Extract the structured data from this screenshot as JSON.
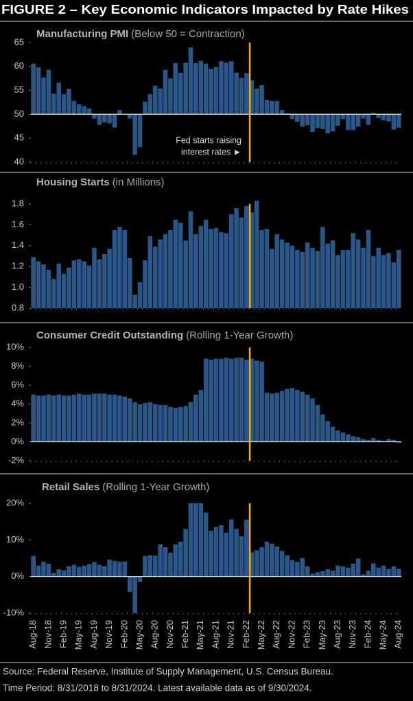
{
  "title": "FIGURE 2 – Key Economic Indicators Impacted by Rate Hikes",
  "chart_data": [
    {
      "type": "bar",
      "title": "Manufacturing PMI",
      "subtitle": "(Below 50 = Contraction)",
      "color": "#2b5687",
      "baseline": 50,
      "annotation": [
        "Fed starts raising",
        "interest rates ►"
      ],
      "ylim": [
        40,
        65
      ],
      "yticks": [
        40,
        45,
        50,
        55,
        60,
        65
      ],
      "values": [
        60.6,
        59.8,
        57.7,
        59.3,
        54.3,
        56.6,
        54.2,
        55.3,
        52.8,
        52.1,
        51.7,
        51.2,
        49.1,
        47.8,
        48.3,
        48.1,
        47.2,
        50.9,
        50.1,
        49.1,
        41.5,
        43.1,
        52.6,
        54.2,
        56.0,
        55.4,
        59.3,
        57.5,
        60.7,
        58.7,
        60.8,
        64.0,
        60.7,
        61.2,
        60.6,
        59.5,
        59.9,
        61.1,
        60.8,
        61.1,
        58.7,
        57.6,
        58.6,
        57.1,
        55.4,
        56.1,
        53.0,
        52.8,
        52.8,
        50.9,
        50.2,
        49.0,
        48.4,
        47.4,
        47.7,
        46.3,
        47.1,
        46.9,
        46.0,
        46.4,
        47.6,
        49.0,
        46.7,
        46.7,
        47.4,
        49.1,
        47.8,
        50.3,
        49.2,
        48.7,
        48.5,
        46.8,
        47.2
      ]
    },
    {
      "type": "bar",
      "title": "Housing Starts",
      "subtitle": "(in Millions)",
      "color": "#2b5687",
      "ylim": [
        0.8,
        1.8
      ],
      "yticks": [
        0.8,
        {
          "value": 1,
          "label": "1.0"
        },
        1.2,
        1.4,
        1.6,
        1.8
      ],
      "values": [
        1.29,
        1.25,
        1.22,
        1.17,
        1.08,
        1.23,
        1.13,
        1.19,
        1.26,
        1.27,
        1.25,
        1.21,
        1.38,
        1.27,
        1.32,
        1.37,
        1.55,
        1.58,
        1.55,
        1.28,
        0.93,
        1.05,
        1.26,
        1.49,
        1.39,
        1.46,
        1.51,
        1.55,
        1.65,
        1.62,
        1.45,
        1.73,
        1.51,
        1.59,
        1.65,
        1.56,
        1.57,
        1.53,
        1.52,
        1.7,
        1.76,
        1.67,
        1.78,
        1.72,
        1.83,
        1.55,
        1.56,
        1.37,
        1.51,
        1.46,
        1.43,
        1.4,
        1.36,
        1.34,
        1.43,
        1.38,
        1.35,
        1.58,
        1.42,
        1.45,
        1.31,
        1.36,
        1.36,
        1.52,
        1.46,
        1.38,
        1.55,
        1.3,
        1.38,
        1.31,
        1.33,
        1.24,
        1.36
      ]
    },
    {
      "type": "bar",
      "title": "Consumer Credit Outstanding",
      "subtitle": "(Rolling 1-Year Growth)",
      "color": "#2b5687",
      "baseline": 0,
      "ylim": [
        -2,
        10
      ],
      "yticks": [
        {
          "value": -2,
          "label": "-2%"
        },
        {
          "value": 0,
          "label": "0%"
        },
        {
          "value": 2,
          "label": "2%"
        },
        {
          "value": 4,
          "label": "4%"
        },
        {
          "value": 6,
          "label": "6%"
        },
        {
          "value": 8,
          "label": "8%"
        },
        {
          "value": 10,
          "label": "10%"
        }
      ],
      "values": [
        5.0,
        4.9,
        4.9,
        5.0,
        4.9,
        5.0,
        4.9,
        4.9,
        5.0,
        5.1,
        5.0,
        5.0,
        5.1,
        5.1,
        5.1,
        5.0,
        5.0,
        4.9,
        4.8,
        4.6,
        4.2,
        4.0,
        4.1,
        4.2,
        4.0,
        3.9,
        3.9,
        3.7,
        3.6,
        3.7,
        3.8,
        4.2,
        5.0,
        5.5,
        8.8,
        8.7,
        8.8,
        8.8,
        8.9,
        8.8,
        8.9,
        8.9,
        8.7,
        8.8,
        8.6,
        8.5,
        5.2,
        5.1,
        5.2,
        5.4,
        5.6,
        5.7,
        5.5,
        5.3,
        5.0,
        4.6,
        3.9,
        2.9,
        2.2,
        1.6,
        1.2,
        1.0,
        0.8,
        0.6,
        0.5,
        0.3,
        0.2,
        0.4,
        0.2,
        0.1,
        0.3,
        0.2,
        -0.1
      ]
    },
    {
      "type": "bar",
      "title": "Retail Sales",
      "subtitle": "(Rolling 1-Year Growth)",
      "color": "#2b5687",
      "baseline": 0,
      "ylim": [
        -10,
        20
      ],
      "yticks": [
        {
          "value": -10,
          "label": "-10%"
        },
        {
          "value": 0,
          "label": "0%"
        },
        {
          "value": 10,
          "label": "10%"
        },
        {
          "value": 20,
          "label": "20%"
        }
      ],
      "categories": [
        "Aug-18",
        null,
        null,
        "Nov-18",
        null,
        null,
        "Feb-19",
        null,
        null,
        "May-19",
        null,
        null,
        "Aug-19",
        null,
        null,
        "Nov-19",
        null,
        null,
        "Feb-20",
        null,
        null,
        "May-20",
        null,
        null,
        "Aug-20",
        null,
        null,
        "Nov-20",
        null,
        null,
        "Feb-21",
        null,
        null,
        "May-21",
        null,
        null,
        "Aug-21",
        null,
        null,
        "Nov-21",
        null,
        null,
        "Feb-22",
        null,
        null,
        "May-22",
        null,
        null,
        "Aug-22",
        null,
        null,
        "Nov-22",
        null,
        null,
        "Feb-23",
        null,
        null,
        "May-23",
        null,
        null,
        "Aug-23",
        null,
        null,
        "Nov-23",
        null,
        null,
        "Feb-24",
        null,
        null,
        "May-24",
        null,
        null,
        "Aug-24"
      ],
      "values": [
        5.6,
        3.0,
        4.0,
        3.5,
        1.0,
        2.0,
        1.7,
        2.8,
        3.2,
        2.6,
        3.0,
        3.4,
        3.9,
        3.2,
        2.8,
        4.6,
        4.3,
        4.0,
        4.1,
        -4.2,
        -10.0,
        -1.5,
        5.6,
        5.8,
        5.7,
        8.8,
        8.0,
        6.5,
        8.8,
        9.5,
        13.0,
        20.0,
        20.0,
        20.0,
        17.5,
        12.5,
        13.5,
        14.0,
        12.0,
        15.6,
        13.0,
        11.0,
        15.5,
        6.6,
        7.2,
        8.0,
        9.5,
        9.0,
        8.2,
        7.0,
        5.8,
        4.5,
        4.0,
        5.0,
        2.8,
        0.8,
        1.2,
        1.5,
        2.0,
        1.6,
        3.0,
        2.8,
        2.4,
        3.5,
        4.9,
        0.6,
        1.6,
        3.6,
        2.4,
        3.0,
        2.1,
        2.8,
        2.1
      ]
    }
  ],
  "source": [
    "Source: Federal Reserve, Institute of Supply Management, U.S. Census Bureau.",
    "Time Period: 8/31/2018 to 8/31/2024. Latest available data as of 9/30/2024."
  ]
}
